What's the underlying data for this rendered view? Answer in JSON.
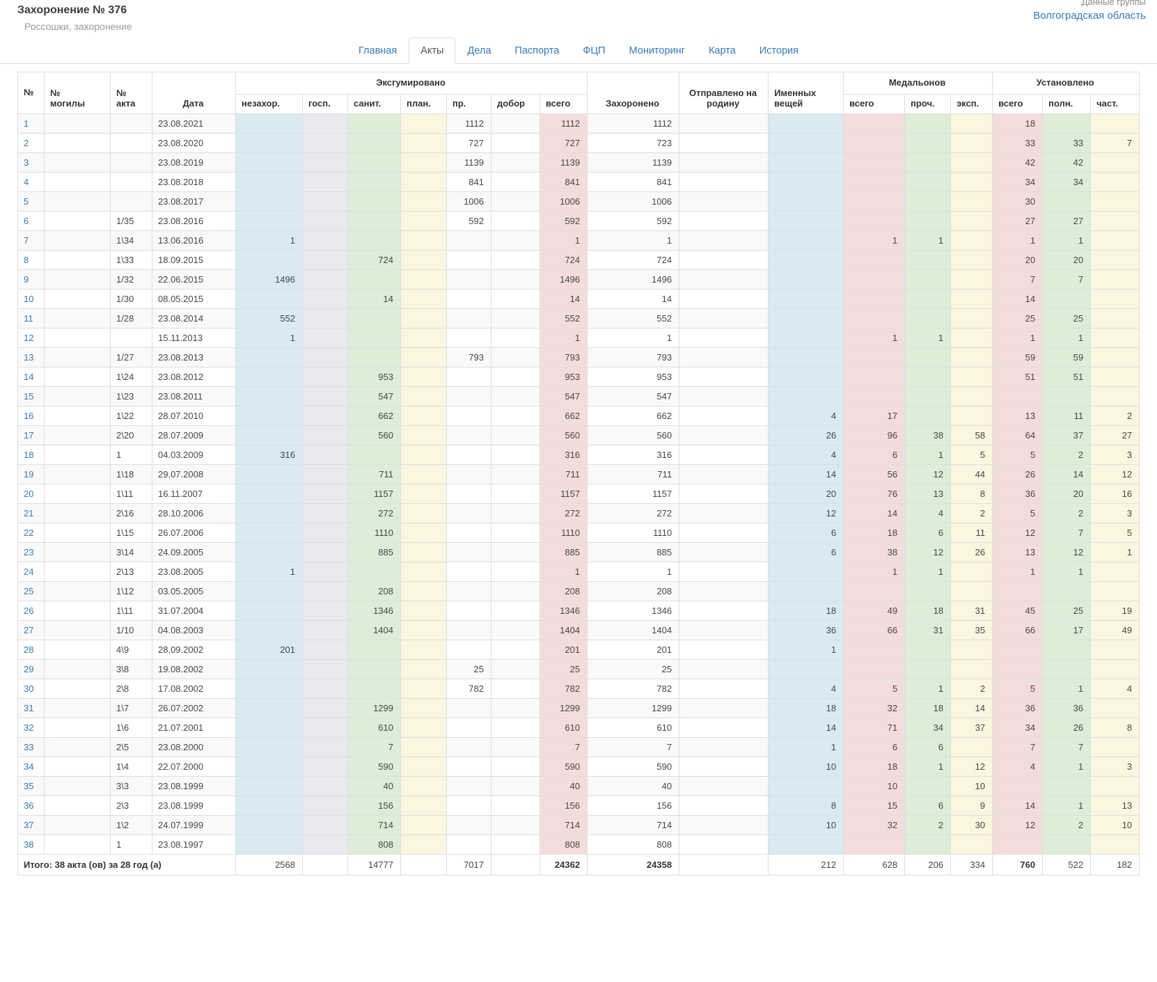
{
  "page": {
    "title": "Захоронение № 376",
    "subtitle": "Россошки, захоронение",
    "group_label": "Данные группы",
    "group_link": "Волгоградская область"
  },
  "colors": {
    "accent": "#337ab7",
    "tint_blue": "#d9eaf2",
    "tint_gray": "#e9e9ef",
    "tint_green": "#ddedd8",
    "tint_yellow": "#faf6df",
    "tint_pink": "#f3dddc",
    "stripe": "#f9f9f9"
  },
  "tabs": [
    {
      "key": "glavnaya",
      "label": "Главная",
      "active": false
    },
    {
      "key": "akty",
      "label": "Акты",
      "active": true
    },
    {
      "key": "dela",
      "label": "Дела",
      "active": false
    },
    {
      "key": "pasporta",
      "label": "Паспорта",
      "active": false
    },
    {
      "key": "fcp",
      "label": "ФЦП",
      "active": false
    },
    {
      "key": "monitoring",
      "label": "Мониторинг",
      "active": false
    },
    {
      "key": "karta",
      "label": "Карта",
      "active": false
    },
    {
      "key": "istoriya",
      "label": "История",
      "active": false
    }
  ],
  "table": {
    "headers": {
      "num": "№",
      "grave": "№ могилы",
      "act": "№ акта",
      "date": "Дата",
      "exhumed_group": "Эксгумировано",
      "exhumed": [
        "незахор.",
        "госп.",
        "санит.",
        "план.",
        "пр.",
        "добор",
        "всего"
      ],
      "buried": "Захоронено",
      "sent_home": "Отправлено на родину",
      "personal_items": "Именных вещей",
      "medallions_group": "Медальонов",
      "medallions": [
        "всего",
        "проч.",
        "эксп."
      ],
      "identified_group": "Установлено",
      "identified": [
        "всего",
        "полн.",
        "част."
      ]
    },
    "column_keys": [
      "num",
      "grave",
      "act",
      "date",
      "nezahor",
      "gosp",
      "sanit",
      "plan",
      "pr",
      "dobor",
      "vsego",
      "zahoroneno",
      "otpravleno",
      "imennyh",
      "med_vsego",
      "med_proch",
      "med_eksp",
      "ust_vsego",
      "ust_poln",
      "ust_chast"
    ],
    "rows": [
      [
        "1",
        "",
        "",
        "23.08.2021",
        "",
        "",
        "",
        "",
        "1112",
        "",
        "1112",
        "1112",
        "",
        "",
        "",
        "",
        "",
        "18",
        "",
        ""
      ],
      [
        "2",
        "",
        "",
        "23.08.2020",
        "",
        "",
        "",
        "",
        "727",
        "",
        "727",
        "723",
        "",
        "",
        "",
        "",
        "",
        "33",
        "33",
        "7"
      ],
      [
        "3",
        "",
        "",
        "23.08.2019",
        "",
        "",
        "",
        "",
        "1139",
        "",
        "1139",
        "1139",
        "",
        "",
        "",
        "",
        "",
        "42",
        "42",
        ""
      ],
      [
        "4",
        "",
        "",
        "23.08.2018",
        "",
        "",
        "",
        "",
        "841",
        "",
        "841",
        "841",
        "",
        "",
        "",
        "",
        "",
        "34",
        "34",
        ""
      ],
      [
        "5",
        "",
        "",
        "23.08.2017",
        "",
        "",
        "",
        "",
        "1006",
        "",
        "1006",
        "1006",
        "",
        "",
        "",
        "",
        "",
        "30",
        "",
        ""
      ],
      [
        "6",
        "",
        "1/35",
        "23.08.2016",
        "",
        "",
        "",
        "",
        "592",
        "",
        "592",
        "592",
        "",
        "",
        "",
        "",
        "",
        "27",
        "27",
        ""
      ],
      [
        "7",
        "",
        "1\\34",
        "13.06.2016",
        "1",
        "",
        "",
        "",
        "",
        "",
        "1",
        "1",
        "",
        "",
        "1",
        "1",
        "",
        "1",
        "1",
        ""
      ],
      [
        "8",
        "",
        "1\\33",
        "18.09.2015",
        "",
        "",
        "724",
        "",
        "",
        "",
        "724",
        "724",
        "",
        "",
        "",
        "",
        "",
        "20",
        "20",
        ""
      ],
      [
        "9",
        "",
        "1/32",
        "22.06.2015",
        "1496",
        "",
        "",
        "",
        "",
        "",
        "1496",
        "1496",
        "",
        "",
        "",
        "",
        "",
        "7",
        "7",
        ""
      ],
      [
        "10",
        "",
        "1/30",
        "08.05.2015",
        "",
        "",
        "14",
        "",
        "",
        "",
        "14",
        "14",
        "",
        "",
        "",
        "",
        "",
        "14",
        "",
        ""
      ],
      [
        "11",
        "",
        "1/28",
        "23.08.2014",
        "552",
        "",
        "",
        "",
        "",
        "",
        "552",
        "552",
        "",
        "",
        "",
        "",
        "",
        "25",
        "25",
        ""
      ],
      [
        "12",
        "",
        "",
        "15.11.2013",
        "1",
        "",
        "",
        "",
        "",
        "",
        "1",
        "1",
        "",
        "",
        "1",
        "1",
        "",
        "1",
        "1",
        ""
      ],
      [
        "13",
        "",
        "1/27",
        "23.08.2013",
        "",
        "",
        "",
        "",
        "793",
        "",
        "793",
        "793",
        "",
        "",
        "",
        "",
        "",
        "59",
        "59",
        ""
      ],
      [
        "14",
        "",
        "1\\24",
        "23.08.2012",
        "",
        "",
        "953",
        "",
        "",
        "",
        "953",
        "953",
        "",
        "",
        "",
        "",
        "",
        "51",
        "51",
        ""
      ],
      [
        "15",
        "",
        "1\\23",
        "23.08.2011",
        "",
        "",
        "547",
        "",
        "",
        "",
        "547",
        "547",
        "",
        "",
        "",
        "",
        "",
        "",
        "",
        ""
      ],
      [
        "16",
        "",
        "1\\22",
        "28.07.2010",
        "",
        "",
        "662",
        "",
        "",
        "",
        "662",
        "662",
        "",
        "4",
        "17",
        "",
        "",
        "13",
        "11",
        "2"
      ],
      [
        "17",
        "",
        "2\\20",
        "28.07.2009",
        "",
        "",
        "560",
        "",
        "",
        "",
        "560",
        "560",
        "",
        "26",
        "96",
        "38",
        "58",
        "64",
        "37",
        "27"
      ],
      [
        "18",
        "",
        "1",
        "04.03.2009",
        "316",
        "",
        "",
        "",
        "",
        "",
        "316",
        "316",
        "",
        "4",
        "6",
        "1",
        "5",
        "5",
        "2",
        "3"
      ],
      [
        "19",
        "",
        "1\\18",
        "29.07.2008",
        "",
        "",
        "711",
        "",
        "",
        "",
        "711",
        "711",
        "",
        "14",
        "56",
        "12",
        "44",
        "26",
        "14",
        "12"
      ],
      [
        "20",
        "",
        "1\\11",
        "16.11.2007",
        "",
        "",
        "1157",
        "",
        "",
        "",
        "1157",
        "1157",
        "",
        "20",
        "76",
        "13",
        "8",
        "36",
        "20",
        "16"
      ],
      [
        "21",
        "",
        "2\\16",
        "28.10.2006",
        "",
        "",
        "272",
        "",
        "",
        "",
        "272",
        "272",
        "",
        "12",
        "14",
        "4",
        "2",
        "5",
        "2",
        "3"
      ],
      [
        "22",
        "",
        "1\\15",
        "26.07.2006",
        "",
        "",
        "1110",
        "",
        "",
        "",
        "1110",
        "1110",
        "",
        "6",
        "18",
        "6",
        "11",
        "12",
        "7",
        "5"
      ],
      [
        "23",
        "",
        "3\\14",
        "24.09.2005",
        "",
        "",
        "885",
        "",
        "",
        "",
        "885",
        "885",
        "",
        "6",
        "38",
        "12",
        "26",
        "13",
        "12",
        "1"
      ],
      [
        "24",
        "",
        "2\\13",
        "23.08.2005",
        "1",
        "",
        "",
        "",
        "",
        "",
        "1",
        "1",
        "",
        "",
        "1",
        "1",
        "",
        "1",
        "1",
        ""
      ],
      [
        "25",
        "",
        "1\\12",
        "03.05.2005",
        "",
        "",
        "208",
        "",
        "",
        "",
        "208",
        "208",
        "",
        "",
        "",
        "",
        "",
        "",
        "",
        ""
      ],
      [
        "26",
        "",
        "1\\11",
        "31.07.2004",
        "",
        "",
        "1346",
        "",
        "",
        "",
        "1346",
        "1346",
        "",
        "18",
        "49",
        "18",
        "31",
        "45",
        "25",
        "19"
      ],
      [
        "27",
        "",
        "1/10",
        "04.08.2003",
        "",
        "",
        "1404",
        "",
        "",
        "",
        "1404",
        "1404",
        "",
        "36",
        "66",
        "31",
        "35",
        "66",
        "17",
        "49"
      ],
      [
        "28",
        "",
        "4\\9",
        "28.09.2002",
        "201",
        "",
        "",
        "",
        "",
        "",
        "201",
        "201",
        "",
        "1",
        "",
        "",
        "",
        "",
        "",
        ""
      ],
      [
        "29",
        "",
        "3\\8",
        "19.08.2002",
        "",
        "",
        "",
        "",
        "25",
        "",
        "25",
        "25",
        "",
        "",
        "",
        "",
        "",
        "",
        "",
        ""
      ],
      [
        "30",
        "",
        "2\\8",
        "17.08.2002",
        "",
        "",
        "",
        "",
        "782",
        "",
        "782",
        "782",
        "",
        "4",
        "5",
        "1",
        "2",
        "5",
        "1",
        "4"
      ],
      [
        "31",
        "",
        "1\\7",
        "26.07.2002",
        "",
        "",
        "1299",
        "",
        "",
        "",
        "1299",
        "1299",
        "",
        "18",
        "32",
        "18",
        "14",
        "36",
        "36",
        ""
      ],
      [
        "32",
        "",
        "1\\6",
        "21.07.2001",
        "",
        "",
        "610",
        "",
        "",
        "",
        "610",
        "610",
        "",
        "14",
        "71",
        "34",
        "37",
        "34",
        "26",
        "8"
      ],
      [
        "33",
        "",
        "2\\5",
        "23.08.2000",
        "",
        "",
        "7",
        "",
        "",
        "",
        "7",
        "7",
        "",
        "1",
        "6",
        "6",
        "",
        "7",
        "7",
        ""
      ],
      [
        "34",
        "",
        "1\\4",
        "22.07.2000",
        "",
        "",
        "590",
        "",
        "",
        "",
        "590",
        "590",
        "",
        "10",
        "18",
        "1",
        "12",
        "4",
        "1",
        "3"
      ],
      [
        "35",
        "",
        "3\\3",
        "23.08.1999",
        "",
        "",
        "40",
        "",
        "",
        "",
        "40",
        "40",
        "",
        "",
        "10",
        "",
        "10",
        "",
        "",
        ""
      ],
      [
        "36",
        "",
        "2\\3",
        "23.08.1999",
        "",
        "",
        "156",
        "",
        "",
        "",
        "156",
        "156",
        "",
        "8",
        "15",
        "6",
        "9",
        "14",
        "1",
        "13"
      ],
      [
        "37",
        "",
        "1\\2",
        "24.07.1999",
        "",
        "",
        "714",
        "",
        "",
        "",
        "714",
        "714",
        "",
        "10",
        "32",
        "2",
        "30",
        "12",
        "2",
        "10"
      ],
      [
        "38",
        "",
        "1",
        "23.08.1997",
        "",
        "",
        "808",
        "",
        "",
        "",
        "808",
        "808",
        "",
        "",
        "",
        "",
        "",
        "",
        "",
        ""
      ]
    ],
    "totals": {
      "label": "Итого: 38 акта (ов) за 28 год (а)",
      "values": [
        "2568",
        "",
        "14777",
        "",
        "7017",
        "",
        "24362",
        "24358",
        "",
        "212",
        "628",
        "206",
        "334",
        "760",
        "522",
        "182"
      ],
      "bold_keys": [
        "vsego",
        "zahoroneno",
        "ust_vsego"
      ]
    }
  }
}
